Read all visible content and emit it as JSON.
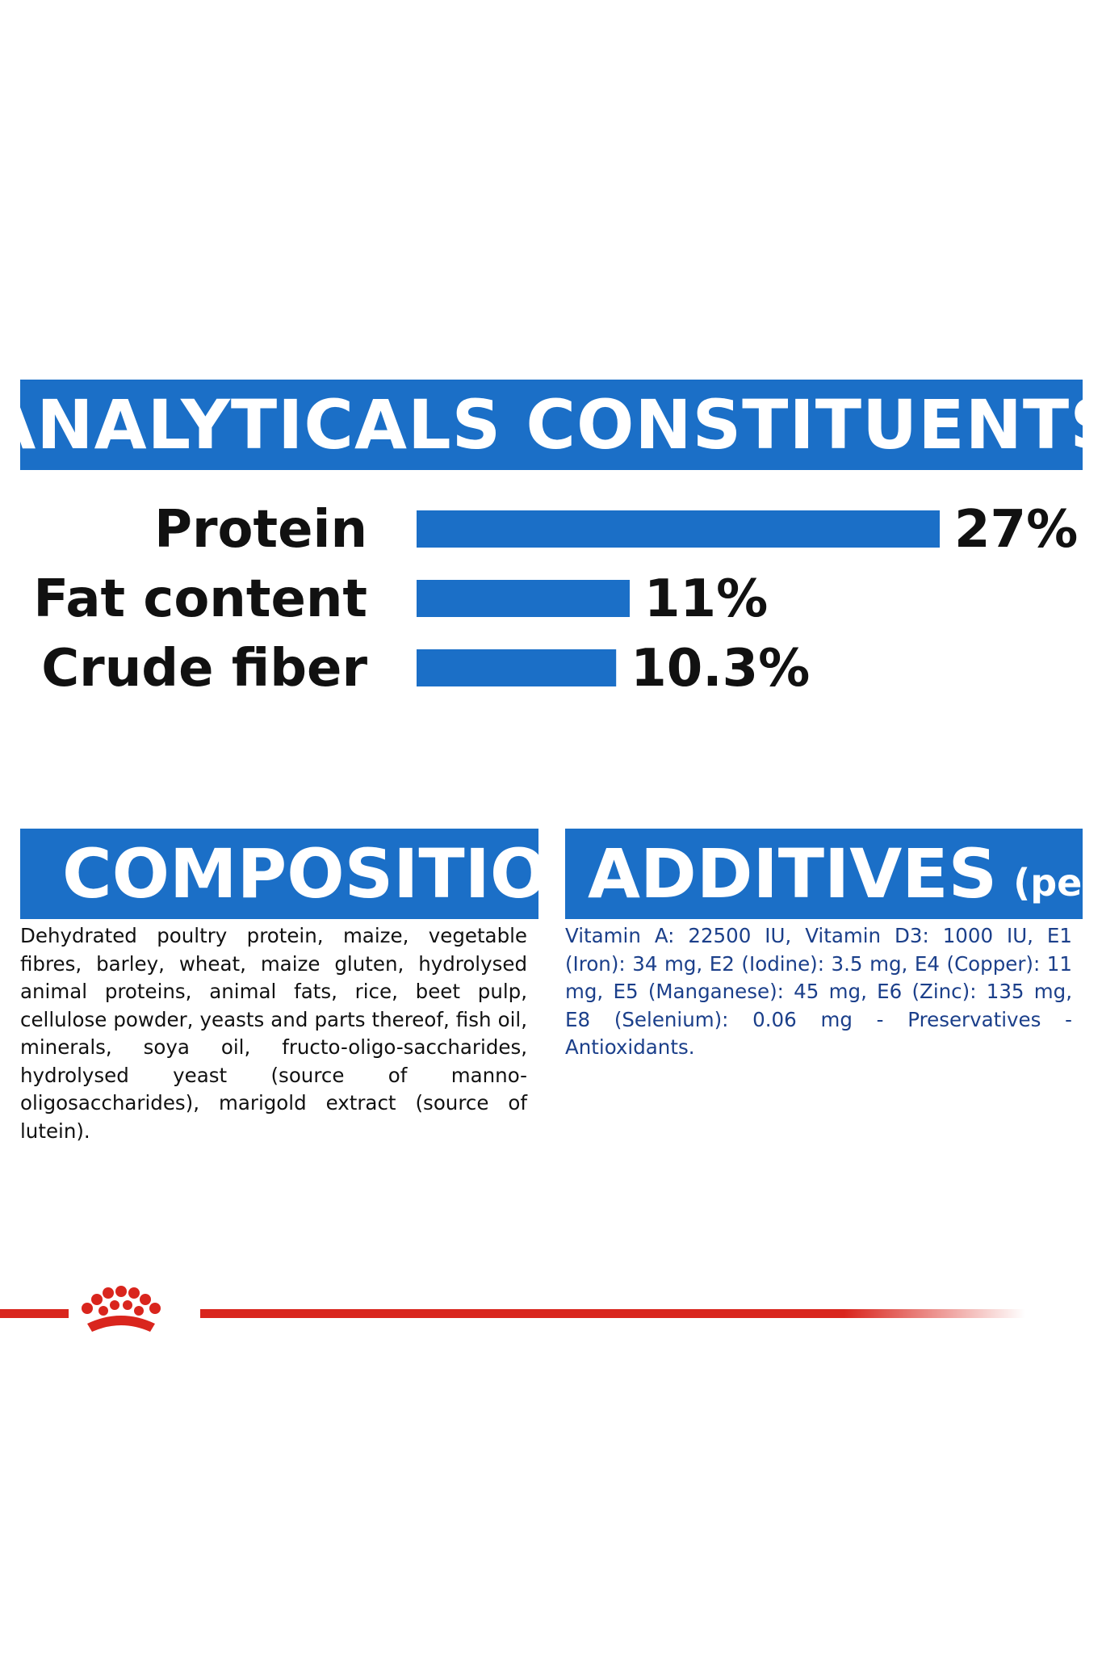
{
  "colors": {
    "accent_blue": "#1b6fc7",
    "brand_red": "#d9251d",
    "additives_text": "#1b3f8a"
  },
  "analytics": {
    "title": "ANALYTICALS CONSTITUENTS"
  },
  "chart_data": {
    "type": "bar",
    "orientation": "horizontal",
    "categories": [
      "Protein",
      "Fat content",
      "Crude fiber"
    ],
    "values": [
      27,
      11,
      10.3
    ],
    "value_labels": [
      "27%",
      "11%",
      "10.3%"
    ],
    "title": "ANALYTICALS CONSTITUENTS",
    "xlabel": "",
    "ylabel": "",
    "unit": "%",
    "grid": false,
    "legend": "none"
  },
  "composition": {
    "title": "COMPOSITION",
    "text": "Dehydrated poultry protein, maize, vegetable fibres, barley, wheat, maize gluten, hydrolysed animal proteins, animal fats, rice, beet pulp, cellulose powder, yeasts and parts thereof, fish oil, minerals, soya oil, fructo-oligo-saccharides, hydrolysed yeast (source of manno-oligosaccharides), marigold extract (source of lutein)."
  },
  "additives": {
    "title": "ADDITIVES",
    "title_suffix": "(per kg)",
    "text": "Vitamin A: 22500 IU, Vitamin D3: 1000 IU, E1 (Iron): 34 mg, E2 (Iodine): 3.5 mg, E4 (Copper): 11 mg, E5 (Manganese): 45 mg, E6 (Zinc): 135 mg, E8 (Selenium): 0.06 mg - Preservatives - Antioxidants."
  },
  "brand": {
    "logo_icon": "royal-crown-logo-icon"
  }
}
